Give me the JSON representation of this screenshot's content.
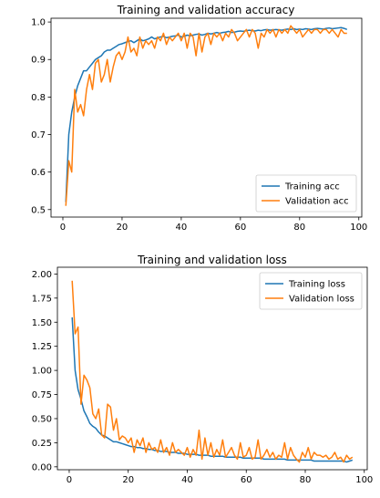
{
  "chart_data": [
    {
      "type": "line",
      "title": "Training and validation accuracy",
      "xlabel": "",
      "ylabel": "",
      "xlim": [
        -4,
        101
      ],
      "ylim": [
        0.48,
        1.01
      ],
      "xticks": [
        0,
        20,
        40,
        60,
        80,
        100
      ],
      "xtick_labels": [
        "0",
        "20",
        "40",
        "60",
        "80",
        "100"
      ],
      "yticks": [
        0.5,
        0.6,
        0.7,
        0.8,
        0.9,
        1.0
      ],
      "ytick_labels": [
        "0.5",
        "0.6",
        "0.7",
        "0.8",
        "0.9",
        "1.0"
      ],
      "legend_position": "lower right",
      "grid": false,
      "series": [
        {
          "name": "Training acc",
          "color": "#1f77b4",
          "x": [
            1,
            2,
            3,
            4,
            5,
            6,
            7,
            8,
            9,
            10,
            11,
            12,
            13,
            14,
            15,
            16,
            17,
            18,
            19,
            20,
            21,
            22,
            23,
            24,
            25,
            26,
            27,
            28,
            29,
            30,
            31,
            32,
            33,
            34,
            35,
            36,
            37,
            38,
            39,
            40,
            41,
            42,
            43,
            44,
            45,
            46,
            47,
            48,
            49,
            50,
            51,
            52,
            53,
            54,
            55,
            56,
            57,
            58,
            59,
            60,
            61,
            62,
            63,
            64,
            65,
            66,
            67,
            68,
            69,
            70,
            71,
            72,
            73,
            74,
            75,
            76,
            77,
            78,
            79,
            80,
            81,
            82,
            83,
            84,
            85,
            86,
            87,
            88,
            89,
            90,
            91,
            92,
            93,
            94,
            95,
            96
          ],
          "y": [
            0.52,
            0.7,
            0.76,
            0.8,
            0.83,
            0.85,
            0.87,
            0.87,
            0.88,
            0.89,
            0.9,
            0.905,
            0.91,
            0.92,
            0.925,
            0.925,
            0.93,
            0.935,
            0.94,
            0.942,
            0.945,
            0.948,
            0.95,
            0.945,
            0.95,
            0.955,
            0.95,
            0.952,
            0.955,
            0.96,
            0.955,
            0.958,
            0.96,
            0.962,
            0.958,
            0.96,
            0.962,
            0.963,
            0.965,
            0.96,
            0.962,
            0.965,
            0.963,
            0.965,
            0.967,
            0.968,
            0.965,
            0.967,
            0.97,
            0.968,
            0.97,
            0.972,
            0.97,
            0.972,
            0.973,
            0.975,
            0.972,
            0.973,
            0.975,
            0.976,
            0.975,
            0.977,
            0.978,
            0.977,
            0.976,
            0.978,
            0.977,
            0.979,
            0.98,
            0.978,
            0.979,
            0.98,
            0.979,
            0.978,
            0.98,
            0.981,
            0.98,
            0.982,
            0.98,
            0.981,
            0.98,
            0.982,
            0.981,
            0.98,
            0.982,
            0.983,
            0.982,
            0.981,
            0.983,
            0.984,
            0.982,
            0.983,
            0.984,
            0.985,
            0.983,
            0.98
          ]
        },
        {
          "name": "Validation acc",
          "color": "#ff7f0e",
          "x": [
            1,
            2,
            3,
            4,
            5,
            6,
            7,
            8,
            9,
            10,
            11,
            12,
            13,
            14,
            15,
            16,
            17,
            18,
            19,
            20,
            21,
            22,
            23,
            24,
            25,
            26,
            27,
            28,
            29,
            30,
            31,
            32,
            33,
            34,
            35,
            36,
            37,
            38,
            39,
            40,
            41,
            42,
            43,
            44,
            45,
            46,
            47,
            48,
            49,
            50,
            51,
            52,
            53,
            54,
            55,
            56,
            57,
            58,
            59,
            60,
            61,
            62,
            63,
            64,
            65,
            66,
            67,
            68,
            69,
            70,
            71,
            72,
            73,
            74,
            75,
            76,
            77,
            78,
            79,
            80,
            81,
            82,
            83,
            84,
            85,
            86,
            87,
            88,
            89,
            90,
            91,
            92,
            93,
            94,
            95,
            96
          ],
          "y": [
            0.51,
            0.63,
            0.6,
            0.82,
            0.76,
            0.78,
            0.75,
            0.82,
            0.86,
            0.82,
            0.89,
            0.9,
            0.84,
            0.86,
            0.9,
            0.84,
            0.88,
            0.91,
            0.92,
            0.9,
            0.92,
            0.96,
            0.92,
            0.93,
            0.91,
            0.96,
            0.93,
            0.95,
            0.94,
            0.95,
            0.93,
            0.96,
            0.95,
            0.97,
            0.94,
            0.96,
            0.95,
            0.96,
            0.97,
            0.95,
            0.97,
            0.93,
            0.97,
            0.96,
            0.91,
            0.97,
            0.92,
            0.96,
            0.97,
            0.94,
            0.97,
            0.96,
            0.97,
            0.95,
            0.97,
            0.96,
            0.98,
            0.97,
            0.95,
            0.96,
            0.97,
            0.98,
            0.96,
            0.98,
            0.97,
            0.93,
            0.97,
            0.96,
            0.98,
            0.97,
            0.98,
            0.96,
            0.98,
            0.97,
            0.98,
            0.97,
            0.99,
            0.98,
            0.97,
            0.98,
            0.96,
            0.97,
            0.98,
            0.97,
            0.98,
            0.98,
            0.97,
            0.98,
            0.98,
            0.97,
            0.98,
            0.97,
            0.96,
            0.98,
            0.97,
            0.97
          ]
        }
      ]
    },
    {
      "type": "line",
      "title": "Training and validation loss",
      "xlabel": "",
      "ylabel": "",
      "xlim": [
        -4,
        101
      ],
      "ylim": [
        -0.03,
        2.07
      ],
      "xticks": [
        0,
        20,
        40,
        60,
        80,
        100
      ],
      "xtick_labels": [
        "0",
        "20",
        "40",
        "60",
        "80",
        "100"
      ],
      "yticks": [
        0.0,
        0.25,
        0.5,
        0.75,
        1.0,
        1.25,
        1.5,
        1.75,
        2.0
      ],
      "ytick_labels": [
        "0.00",
        "0.25",
        "0.50",
        "0.75",
        "1.00",
        "1.25",
        "1.50",
        "1.75",
        "2.00"
      ],
      "legend_position": "upper right",
      "grid": false,
      "series": [
        {
          "name": "Training loss",
          "color": "#1f77b4",
          "x": [
            1,
            2,
            3,
            4,
            5,
            6,
            7,
            8,
            9,
            10,
            11,
            12,
            13,
            14,
            15,
            16,
            17,
            18,
            19,
            20,
            21,
            22,
            23,
            24,
            25,
            26,
            27,
            28,
            29,
            30,
            31,
            32,
            33,
            34,
            35,
            36,
            37,
            38,
            39,
            40,
            41,
            42,
            43,
            44,
            45,
            46,
            47,
            48,
            49,
            50,
            51,
            52,
            53,
            54,
            55,
            56,
            57,
            58,
            59,
            60,
            61,
            62,
            63,
            64,
            65,
            66,
            67,
            68,
            69,
            70,
            71,
            72,
            73,
            74,
            75,
            76,
            77,
            78,
            79,
            80,
            81,
            82,
            83,
            84,
            85,
            86,
            87,
            88,
            89,
            90,
            91,
            92,
            93,
            94,
            95,
            96
          ],
          "y": [
            1.55,
            1.0,
            0.8,
            0.7,
            0.58,
            0.52,
            0.45,
            0.42,
            0.4,
            0.36,
            0.33,
            0.32,
            0.3,
            0.28,
            0.26,
            0.26,
            0.25,
            0.24,
            0.23,
            0.22,
            0.21,
            0.21,
            0.2,
            0.2,
            0.19,
            0.19,
            0.18,
            0.18,
            0.17,
            0.17,
            0.16,
            0.16,
            0.16,
            0.15,
            0.15,
            0.15,
            0.14,
            0.14,
            0.14,
            0.13,
            0.13,
            0.13,
            0.13,
            0.12,
            0.12,
            0.12,
            0.12,
            0.11,
            0.11,
            0.11,
            0.11,
            0.11,
            0.1,
            0.1,
            0.1,
            0.1,
            0.1,
            0.1,
            0.09,
            0.09,
            0.09,
            0.09,
            0.09,
            0.09,
            0.09,
            0.08,
            0.08,
            0.08,
            0.08,
            0.08,
            0.08,
            0.08,
            0.08,
            0.07,
            0.07,
            0.07,
            0.07,
            0.07,
            0.07,
            0.07,
            0.07,
            0.07,
            0.06,
            0.06,
            0.06,
            0.06,
            0.06,
            0.06,
            0.06,
            0.06,
            0.06,
            0.06,
            0.06,
            0.05,
            0.06,
            0.07
          ]
        },
        {
          "name": "Validation loss",
          "color": "#ff7f0e",
          "x": [
            1,
            2,
            3,
            4,
            5,
            6,
            7,
            8,
            9,
            10,
            11,
            12,
            13,
            14,
            15,
            16,
            17,
            18,
            19,
            20,
            21,
            22,
            23,
            24,
            25,
            26,
            27,
            28,
            29,
            30,
            31,
            32,
            33,
            34,
            35,
            36,
            37,
            38,
            39,
            40,
            41,
            42,
            43,
            44,
            45,
            46,
            47,
            48,
            49,
            50,
            51,
            52,
            53,
            54,
            55,
            56,
            57,
            58,
            59,
            60,
            61,
            62,
            63,
            64,
            65,
            66,
            67,
            68,
            69,
            70,
            71,
            72,
            73,
            74,
            75,
            76,
            77,
            78,
            79,
            80,
            81,
            82,
            83,
            84,
            85,
            86,
            87,
            88,
            89,
            90,
            91,
            92,
            93,
            94,
            95,
            96
          ],
          "y": [
            1.93,
            1.38,
            1.45,
            0.65,
            0.95,
            0.9,
            0.82,
            0.55,
            0.5,
            0.6,
            0.33,
            0.3,
            0.65,
            0.62,
            0.38,
            0.5,
            0.28,
            0.32,
            0.3,
            0.25,
            0.3,
            0.15,
            0.28,
            0.22,
            0.3,
            0.15,
            0.25,
            0.18,
            0.2,
            0.15,
            0.28,
            0.15,
            0.2,
            0.12,
            0.25,
            0.15,
            0.18,
            0.15,
            0.12,
            0.2,
            0.1,
            0.18,
            0.12,
            0.38,
            0.08,
            0.3,
            0.12,
            0.25,
            0.1,
            0.18,
            0.12,
            0.28,
            0.1,
            0.15,
            0.2,
            0.12,
            0.08,
            0.25,
            0.1,
            0.12,
            0.2,
            0.08,
            0.1,
            0.28,
            0.08,
            0.12,
            0.18,
            0.1,
            0.15,
            0.08,
            0.12,
            0.1,
            0.25,
            0.08,
            0.2,
            0.12,
            0.08,
            0.05,
            0.15,
            0.1,
            0.2,
            0.08,
            0.15,
            0.12,
            0.12,
            0.1,
            0.12,
            0.08,
            0.1,
            0.15,
            0.08,
            0.1,
            0.05,
            0.12,
            0.08,
            0.1
          ]
        }
      ]
    }
  ]
}
